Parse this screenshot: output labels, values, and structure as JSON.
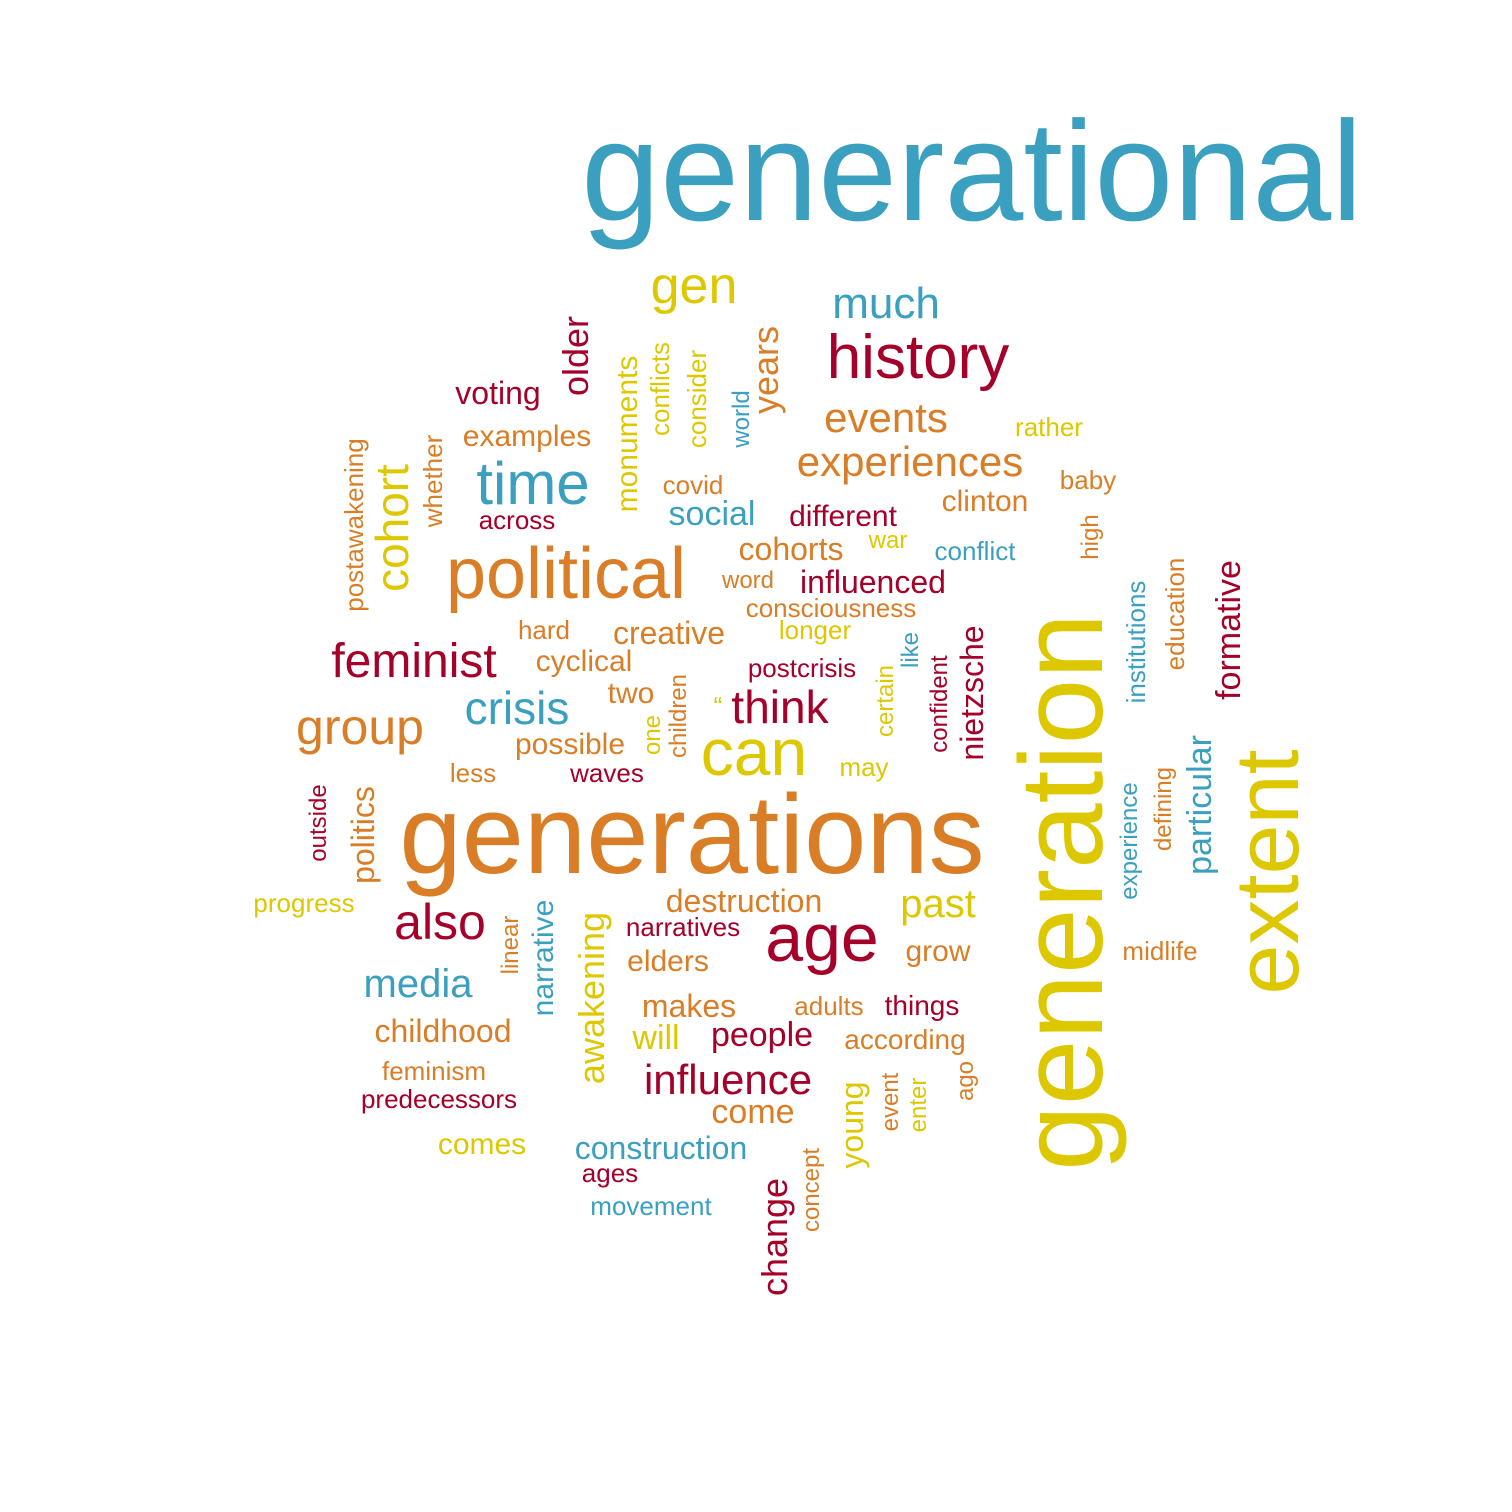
{
  "palette": {
    "blue": "#3b9fbf",
    "orange": "#d97e27",
    "red": "#a5002a",
    "yellow": "#ddc800"
  },
  "words": [
    {
      "text": "generational",
      "color": "blue",
      "weight": 10
    },
    {
      "text": "generations",
      "color": "orange",
      "weight": 8.5
    },
    {
      "text": "generation",
      "color": "yellow",
      "weight": 9
    },
    {
      "text": "extent",
      "color": "yellow",
      "weight": 6.5
    },
    {
      "text": "political",
      "color": "orange",
      "weight": 5
    },
    {
      "text": "history",
      "color": "red",
      "weight": 4.5
    },
    {
      "text": "age",
      "color": "red",
      "weight": 5
    },
    {
      "text": "can",
      "color": "yellow",
      "weight": 5
    },
    {
      "text": "time",
      "color": "blue",
      "weight": 4.5
    },
    {
      "text": "gen",
      "color": "yellow",
      "weight": 3.8
    },
    {
      "text": "much",
      "color": "blue",
      "weight": 3.2
    },
    {
      "text": "cohort",
      "color": "yellow",
      "weight": 3.4
    },
    {
      "text": "feminist",
      "color": "red",
      "weight": 3.6
    },
    {
      "text": "group",
      "color": "orange",
      "weight": 3.8
    },
    {
      "text": "crisis",
      "color": "blue",
      "weight": 3.4
    },
    {
      "text": "think",
      "color": "red",
      "weight": 3.4
    },
    {
      "text": "also",
      "color": "red",
      "weight": 3.6
    },
    {
      "text": "media",
      "color": "blue",
      "weight": 3.0
    },
    {
      "text": "influence",
      "color": "red",
      "weight": 3.0
    },
    {
      "text": "awakening",
      "color": "yellow",
      "weight": 2.9
    },
    {
      "text": "change",
      "color": "red",
      "weight": 2.8
    },
    {
      "text": "events",
      "color": "orange",
      "weight": 3.0
    },
    {
      "text": "experiences",
      "color": "orange",
      "weight": 3.0
    },
    {
      "text": "older",
      "color": "red",
      "weight": 2.7
    },
    {
      "text": "years",
      "color": "orange",
      "weight": 2.7
    },
    {
      "text": "past",
      "color": "yellow",
      "weight": 2.8
    },
    {
      "text": "formative",
      "color": "red",
      "weight": 2.5
    },
    {
      "text": "particular",
      "color": "blue",
      "weight": 2.5
    },
    {
      "text": "nietzsche",
      "color": "red",
      "weight": 2.3
    },
    {
      "text": "young",
      "color": "yellow",
      "weight": 2.3
    },
    {
      "text": "people",
      "color": "red",
      "weight": 2.4
    },
    {
      "text": "social",
      "color": "blue",
      "weight": 2.4
    },
    {
      "text": "cohorts",
      "color": "orange",
      "weight": 2.3
    },
    {
      "text": "narrative",
      "color": "blue",
      "weight": 2.2
    },
    {
      "text": "destruction",
      "color": "orange",
      "weight": 2.2
    },
    {
      "text": "childhood",
      "color": "orange",
      "weight": 2.2
    },
    {
      "text": "construction",
      "color": "blue",
      "weight": 2.2
    },
    {
      "text": "come",
      "color": "orange",
      "weight": 2.2
    },
    {
      "text": "will",
      "color": "yellow",
      "weight": 2.3
    },
    {
      "text": "makes",
      "color": "orange",
      "weight": 2.2
    },
    {
      "text": "politics",
      "color": "orange",
      "weight": 2.2
    },
    {
      "text": "monuments",
      "color": "yellow",
      "weight": 2.1
    },
    {
      "text": "influenced",
      "color": "red",
      "weight": 2.2
    },
    {
      "text": "clinton",
      "color": "orange",
      "weight": 2.2
    },
    {
      "text": "different",
      "color": "red",
      "weight": 2.2
    },
    {
      "text": "creative",
      "color": "orange",
      "weight": 2.2
    },
    {
      "text": "voting",
      "color": "red",
      "weight": 2.2
    },
    {
      "text": "examples",
      "color": "orange",
      "weight": 2.1
    },
    {
      "text": "possible",
      "color": "orange",
      "weight": 2.1
    },
    {
      "text": "cyclical",
      "color": "orange",
      "weight": 2.1
    },
    {
      "text": "two",
      "color": "orange",
      "weight": 2.1
    },
    {
      "text": "elders",
      "color": "orange",
      "weight": 2.1
    },
    {
      "text": "grow",
      "color": "orange",
      "weight": 2.1
    },
    {
      "text": "comes",
      "color": "yellow",
      "weight": 2.0
    },
    {
      "text": "postawakening",
      "color": "orange",
      "weight": 1.9
    },
    {
      "text": "whether",
      "color": "orange",
      "weight": 1.8
    },
    {
      "text": "across",
      "color": "red",
      "weight": 1.8
    },
    {
      "text": "conflicts",
      "color": "yellow",
      "weight": 1.8
    },
    {
      "text": "consider",
      "color": "yellow",
      "weight": 1.8
    },
    {
      "text": "world",
      "color": "blue",
      "weight": 1.7
    },
    {
      "text": "covid",
      "color": "orange",
      "weight": 1.8
    },
    {
      "text": "rather",
      "color": "yellow",
      "weight": 1.8
    },
    {
      "text": "baby",
      "color": "orange",
      "weight": 1.8
    },
    {
      "text": "war",
      "color": "yellow",
      "weight": 1.7
    },
    {
      "text": "conflict",
      "color": "blue",
      "weight": 1.8
    },
    {
      "text": "high",
      "color": "orange",
      "weight": 1.7
    },
    {
      "text": "education",
      "color": "orange",
      "weight": 1.8
    },
    {
      "text": "institutions",
      "color": "blue",
      "weight": 1.8
    },
    {
      "text": "word",
      "color": "orange",
      "weight": 1.7
    },
    {
      "text": "consciousness",
      "color": "orange",
      "weight": 1.8
    },
    {
      "text": "hard",
      "color": "orange",
      "weight": 1.7
    },
    {
      "text": "longer",
      "color": "yellow",
      "weight": 1.7
    },
    {
      "text": "like",
      "color": "blue",
      "weight": 1.7
    },
    {
      "text": "confident",
      "color": "red",
      "weight": 1.7
    },
    {
      "text": "postcrisis",
      "color": "red",
      "weight": 1.7
    },
    {
      "text": "certain",
      "color": "yellow",
      "weight": 1.7
    },
    {
      "text": "children",
      "color": "orange",
      "weight": 1.7
    },
    {
      "text": "one",
      "color": "yellow",
      "weight": 1.7
    },
    {
      "text": "“",
      "color": "yellow",
      "weight": 1.7
    },
    {
      "text": "may",
      "color": "yellow",
      "weight": 1.7
    },
    {
      "text": "waves",
      "color": "red",
      "weight": 1.7
    },
    {
      "text": "less",
      "color": "orange",
      "weight": 1.7
    },
    {
      "text": "outside",
      "color": "red",
      "weight": 1.7
    },
    {
      "text": "experience",
      "color": "blue",
      "weight": 1.7
    },
    {
      "text": "defining",
      "color": "orange",
      "weight": 1.7
    },
    {
      "text": "progress",
      "color": "yellow",
      "weight": 1.7
    },
    {
      "text": "linear",
      "color": "orange",
      "weight": 1.7
    },
    {
      "text": "narratives",
      "color": "red",
      "weight": 1.7
    },
    {
      "text": "midlife",
      "color": "orange",
      "weight": 1.7
    },
    {
      "text": "adults",
      "color": "orange",
      "weight": 1.7
    },
    {
      "text": "things",
      "color": "red",
      "weight": 1.8
    },
    {
      "text": "according",
      "color": "orange",
      "weight": 1.8
    },
    {
      "text": "feminism",
      "color": "orange",
      "weight": 1.7
    },
    {
      "text": "predecessors",
      "color": "red",
      "weight": 1.7
    },
    {
      "text": "event",
      "color": "orange",
      "weight": 1.7
    },
    {
      "text": "enter",
      "color": "yellow",
      "weight": 1.7
    },
    {
      "text": "ago",
      "color": "orange",
      "weight": 1.7
    },
    {
      "text": "ages",
      "color": "red",
      "weight": 1.7
    },
    {
      "text": "concept",
      "color": "orange",
      "weight": 1.7
    },
    {
      "text": "movement",
      "color": "blue",
      "weight": 1.7
    }
  ]
}
